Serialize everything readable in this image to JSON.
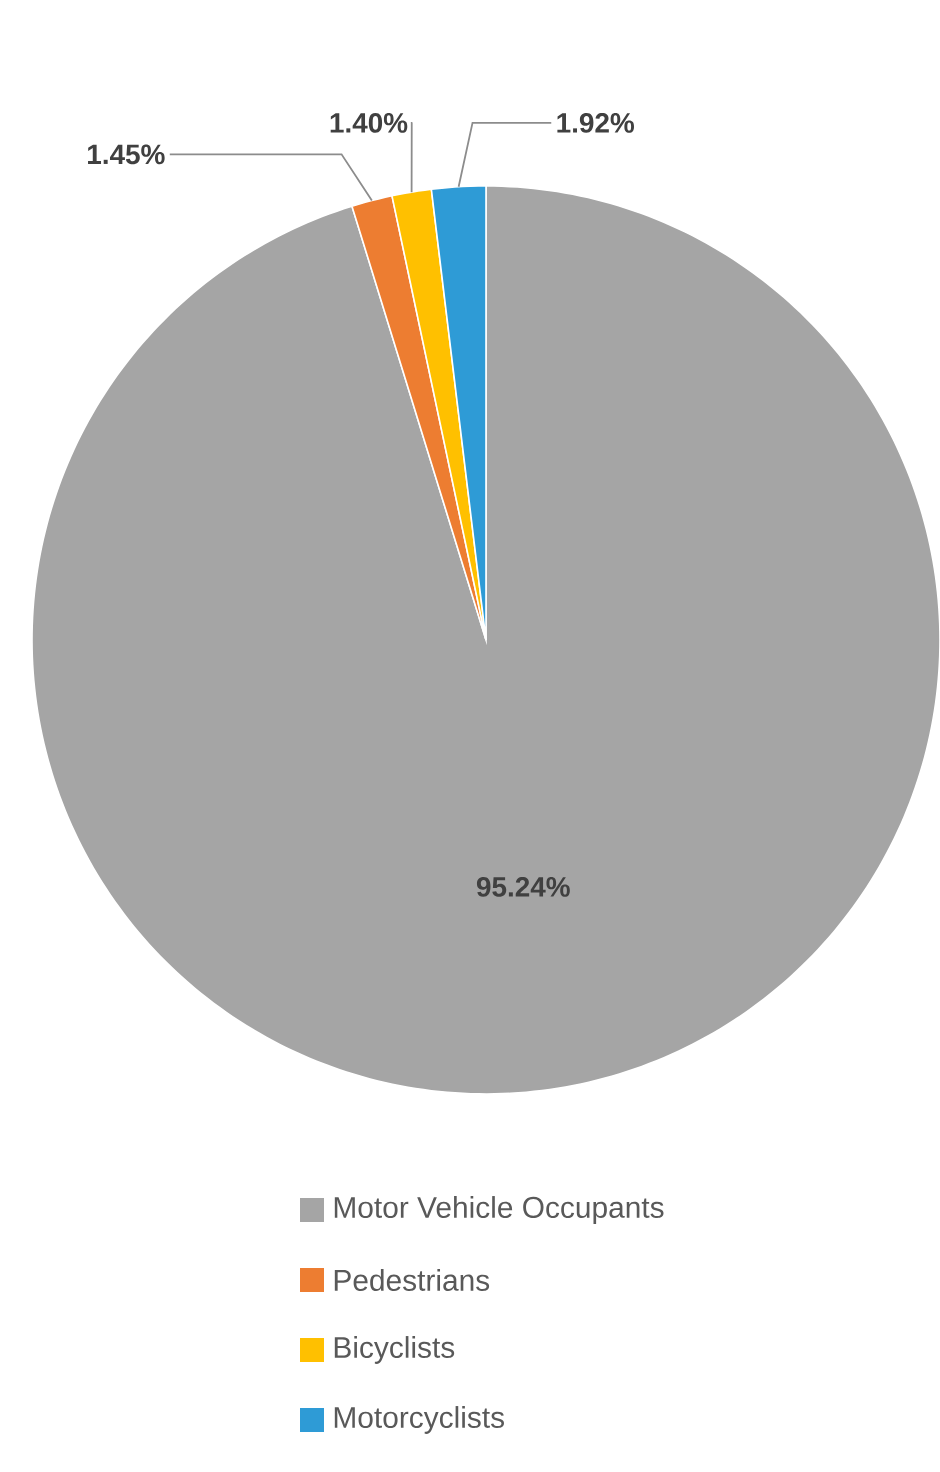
{
  "chart_data": {
    "type": "pie",
    "categories": [
      "Motor Vehicle Occupants",
      "Pedestrians",
      "Bicyclists",
      "Motorcyclists"
    ],
    "values": [
      95.24,
      1.45,
      1.4,
      1.92
    ],
    "colors": [
      "#a5a5a5",
      "#ed7d31",
      "#ffc000",
      "#2e9bd6"
    ],
    "value_labels": [
      "95.24%",
      "1.45%",
      "1.40%",
      "1.92%"
    ],
    "legend": "bottom"
  }
}
